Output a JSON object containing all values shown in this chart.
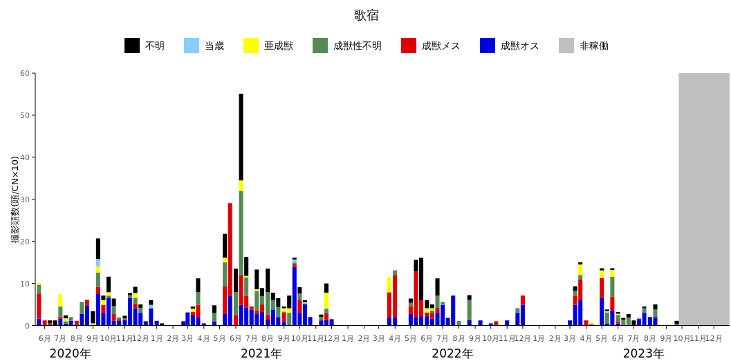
{
  "chart_data": {
    "type": "bar",
    "stacked": true,
    "title": "歌宿",
    "ylabel": "撮影頭数(頭/CN×10)",
    "legend": "top",
    "x": [
      "2020-05-21",
      "2020-06-01",
      "2020-06-11",
      "2020-06-21",
      "2020-07-01",
      "2020-07-11",
      "2020-07-21",
      "2020-08-01",
      "2020-08-11",
      "2020-08-21",
      "2020-09-01",
      "2020-09-11",
      "2020-09-21",
      "2020-10-01",
      "2020-10-11",
      "2020-10-21",
      "2020-11-01",
      "2020-11-11",
      "2020-11-21",
      "2020-12-01",
      "2020-12-11",
      "2020-12-21",
      "2021-01-01",
      "2021-01-11",
      "2021-02-21",
      "2021-03-01",
      "2021-03-11",
      "2021-03-21",
      "2021-04-01",
      "2021-04-21",
      "2021-05-11",
      "2021-05-21",
      "2021-06-01",
      "2021-06-11",
      "2021-06-21",
      "2021-07-01",
      "2021-07-11",
      "2021-07-21",
      "2021-08-01",
      "2021-08-11",
      "2021-08-21",
      "2021-09-01",
      "2021-09-11",
      "2021-09-21",
      "2021-10-01",
      "2021-10-11",
      "2021-10-21",
      "2021-11-11",
      "2021-11-21",
      "2021-12-01",
      "2022-03-21",
      "2022-04-01",
      "2022-05-01",
      "2022-05-11",
      "2022-05-21",
      "2022-06-01",
      "2022-06-11",
      "2022-06-21",
      "2022-07-01",
      "2022-07-11",
      "2022-07-21",
      "2022-08-01",
      "2022-08-21",
      "2022-09-11",
      "2022-10-01",
      "2022-10-11",
      "2022-11-01",
      "2022-11-21",
      "2022-12-01",
      "2023-03-01",
      "2023-03-11",
      "2023-03-21",
      "2023-04-01",
      "2023-04-11",
      "2023-05-01",
      "2023-05-11",
      "2023-05-21",
      "2023-06-01",
      "2023-06-11",
      "2023-06-21",
      "2023-07-01",
      "2023-07-11",
      "2023-07-21",
      "2023-08-01",
      "2023-08-11",
      "2023-09-21"
    ],
    "series": [
      {
        "name": "成獣オス",
        "color": "#0000e0",
        "values": [
          1.6,
          0,
          0,
          0,
          1.6,
          0.5,
          1.1,
          0,
          2.8,
          4.7,
          0,
          7.6,
          3,
          6.6,
          1.1,
          1.1,
          1.3,
          6.5,
          4.1,
          3,
          1,
          4.1,
          1.1,
          0,
          1,
          3.1,
          2.4,
          1.9,
          0.5,
          1,
          2.7,
          7.1,
          0,
          4.9,
          4.3,
          3.8,
          2.7,
          3.2,
          1.4,
          3.8,
          2,
          0.8,
          0,
          13.9,
          3,
          5.1,
          2,
          1.2,
          1.3,
          1.5,
          1.9,
          2,
          2.7,
          1.9,
          2.2,
          2.2,
          1.6,
          3,
          4.9,
          1.8,
          7.1,
          0,
          1.3,
          1.2,
          0.5,
          0,
          1.2,
          3,
          4.9,
          1.2,
          4.9,
          6,
          0,
          0,
          6.6,
          0.5,
          3.6,
          0.5,
          0,
          0,
          0,
          1.6,
          3,
          2,
          1.9,
          0
        ]
      },
      {
        "name": "成獣メス",
        "color": "#e00000",
        "values": [
          6,
          1.2,
          0.5,
          0,
          0.5,
          0,
          0,
          1.1,
          0,
          1.4,
          0,
          1.6,
          1.9,
          0,
          1.6,
          0.3,
          0,
          0,
          1.1,
          0,
          0,
          0,
          0,
          0,
          0,
          0,
          0.8,
          3,
          0,
          0,
          6.6,
          22,
          2.4,
          7.1,
          2.7,
          0.7,
          0.8,
          1.8,
          1.1,
          0,
          0,
          2.2,
          0,
          0.7,
          3,
          0,
          0,
          0,
          1.6,
          0,
          6,
          10,
          1.9,
          10.9,
          3.8,
          0.9,
          1.4,
          1.2,
          0,
          0,
          0,
          0,
          0,
          0,
          0,
          1,
          0,
          0,
          2.2,
          0,
          2.2,
          4.9,
          1.2,
          0.3,
          4.7,
          0,
          3.3,
          0.5,
          0,
          0,
          0,
          0,
          0,
          0,
          0,
          0
        ]
      },
      {
        "name": "成獣性不明",
        "color": "#548b54",
        "values": [
          2.1,
          0,
          0,
          0,
          2.4,
          0.5,
          0.9,
          0,
          2.8,
          0,
          0,
          3.4,
          0,
          0.5,
          1.9,
          0.5,
          0.4,
          0.7,
          1.4,
          1.2,
          0,
          0,
          0,
          0,
          0,
          0,
          0,
          3,
          0,
          2,
          5.7,
          0,
          5.5,
          20,
          4.4,
          0,
          4.7,
          2,
          5.4,
          2.2,
          2.4,
          0.3,
          3,
          0.4,
          1.6,
          0,
          0,
          0.8,
          1.1,
          0,
          0,
          1.1,
          0.8,
          0,
          0,
          0,
          0.6,
          2.9,
          0.7,
          0,
          0,
          1.1,
          4.8,
          0,
          0,
          0,
          0,
          1.1,
          0,
          0,
          1.1,
          1.1,
          0,
          0,
          0,
          2.6,
          4.7,
          1.5,
          1.4,
          1.9,
          0,
          0,
          1.1,
          0,
          1.9,
          0.3
        ]
      },
      {
        "name": "亜成獣",
        "color": "#ffff00",
        "values": [
          0.4,
          0,
          0,
          0,
          2.9,
          0.7,
          0,
          0,
          0,
          0,
          0.5,
          1.4,
          1.1,
          0.8,
          0,
          0,
          0,
          0,
          1.1,
          0,
          0,
          0,
          0,
          0,
          0,
          0,
          0.8,
          0,
          0,
          0,
          1.1,
          0,
          0,
          2.5,
          0.4,
          0,
          0.4,
          0,
          0,
          0,
          0,
          0.8,
          1.1,
          0,
          0,
          0,
          0,
          0,
          3.8,
          0,
          3.6,
          0,
          0,
          0,
          0,
          1,
          0.5,
          0,
          0,
          0,
          0,
          0,
          0,
          0,
          0,
          0,
          0,
          0,
          0,
          0,
          0,
          2.5,
          0,
          0.3,
          1.8,
          0.3,
          1.6,
          0.3,
          0,
          0,
          0,
          0,
          0,
          0,
          0,
          0
        ]
      },
      {
        "name": "当歳",
        "color": "#87cefa",
        "values": [
          0,
          0,
          0,
          0,
          0,
          0,
          0,
          0,
          0,
          0,
          0,
          1.8,
          0,
          0,
          0,
          0,
          0,
          0,
          0,
          0,
          0,
          0.8,
          0,
          0,
          0,
          0,
          0,
          0,
          0,
          0,
          0,
          0,
          0,
          0,
          0,
          0,
          0,
          0,
          0,
          0,
          0,
          0,
          0,
          0.7,
          0,
          0.5,
          0,
          0,
          0,
          0,
          0,
          0,
          0,
          0,
          0,
          0,
          0,
          0,
          0,
          0,
          0,
          0,
          0,
          0,
          0,
          0,
          0,
          0,
          0,
          0,
          0,
          0,
          0,
          0,
          0,
          0,
          0,
          0,
          0,
          0,
          0,
          0.3,
          0,
          0,
          0,
          0
        ]
      },
      {
        "name": "不明",
        "color": "#000000",
        "values": [
          0,
          0,
          0.7,
          1.2,
          0,
          0.7,
          0,
          0,
          0,
          0,
          2.9,
          4.9,
          1.1,
          3.7,
          1.8,
          0,
          0.6,
          0.5,
          1.5,
          0.8,
          0,
          1.1,
          0,
          0.5,
          0,
          0,
          0.5,
          3.3,
          0,
          1.8,
          5.7,
          0,
          5.6,
          20.6,
          4.5,
          0,
          4.7,
          1.9,
          5.6,
          1.8,
          2.1,
          0.4,
          3,
          0.4,
          1.5,
          0.4,
          0,
          0.6,
          2.2,
          0,
          0,
          0,
          1,
          2.8,
          10.1,
          1.9,
          0.9,
          4.1,
          0,
          0,
          0,
          0,
          1.1,
          0,
          0,
          0,
          0,
          0,
          0,
          0,
          1.1,
          0.5,
          0,
          0,
          0.5,
          0.4,
          0.4,
          0.4,
          0.4,
          0.8,
          1.2,
          0,
          0.4,
          0,
          1.2,
          0.8
        ]
      }
    ],
    "bands": [
      {
        "axis": "x",
        "from": "2023-09-25",
        "to": "2023-12-31",
        "label": "非稼働",
        "color": "#c0c0c0"
      }
    ],
    "xlim": [
      "2020-05-14",
      "2023-12-31"
    ],
    "xticks": [
      {
        "value": "2020-06",
        "label": "6月"
      },
      {
        "value": "2020-07",
        "label": "7月"
      },
      {
        "value": "2020-08",
        "label": "8月"
      },
      {
        "value": "2020-09",
        "label": "9月"
      },
      {
        "value": "2020-10",
        "label": "10月"
      },
      {
        "value": "2020-11",
        "label": "11月"
      },
      {
        "value": "2020-12",
        "label": "12月"
      },
      {
        "value": "2021-01",
        "label": "1月"
      },
      {
        "value": "2021-02",
        "label": "2月"
      },
      {
        "value": "2021-03",
        "label": "3月"
      },
      {
        "value": "2021-04",
        "label": "4月"
      },
      {
        "value": "2021-05",
        "label": "5月"
      },
      {
        "value": "2021-06",
        "label": "6月"
      },
      {
        "value": "2021-07",
        "label": "7月"
      },
      {
        "value": "2021-08",
        "label": "8月"
      },
      {
        "value": "2021-09",
        "label": "9月"
      },
      {
        "value": "2021-10",
        "label": "10月"
      },
      {
        "value": "2021-11",
        "label": "11月"
      },
      {
        "value": "2021-12",
        "label": "12月"
      },
      {
        "value": "2022-01",
        "label": "1月"
      },
      {
        "value": "2022-02",
        "label": "2月"
      },
      {
        "value": "2022-03",
        "label": "3月"
      },
      {
        "value": "2022-04",
        "label": "4月"
      },
      {
        "value": "2022-05",
        "label": "5月"
      },
      {
        "value": "2022-06",
        "label": "6月"
      },
      {
        "value": "2022-07",
        "label": "7月"
      },
      {
        "value": "2022-08",
        "label": "8月"
      },
      {
        "value": "2022-09",
        "label": "9月"
      },
      {
        "value": "2022-10",
        "label": "10月"
      },
      {
        "value": "2022-11",
        "label": "11月"
      },
      {
        "value": "2022-12",
        "label": "12月"
      },
      {
        "value": "2023-01",
        "label": "1月"
      },
      {
        "value": "2023-02",
        "label": "2月"
      },
      {
        "value": "2023-03",
        "label": "3月"
      },
      {
        "value": "2023-04",
        "label": "4月"
      },
      {
        "value": "2023-05",
        "label": "5月"
      },
      {
        "value": "2023-06",
        "label": "6月"
      },
      {
        "value": "2023-07",
        "label": "7月"
      },
      {
        "value": "2023-08",
        "label": "8月"
      },
      {
        "value": "2023-09",
        "label": "9月"
      },
      {
        "value": "2023-10",
        "label": "10月"
      },
      {
        "value": "2023-11",
        "label": "11月"
      },
      {
        "value": "2023-12",
        "label": "12月"
      }
    ],
    "ylim": [
      0,
      60
    ],
    "yticks": [
      0,
      10,
      20,
      30,
      40,
      50,
      60
    ],
    "annotations": [
      "2020年",
      "2021年",
      "2022年",
      "2023年"
    ]
  }
}
